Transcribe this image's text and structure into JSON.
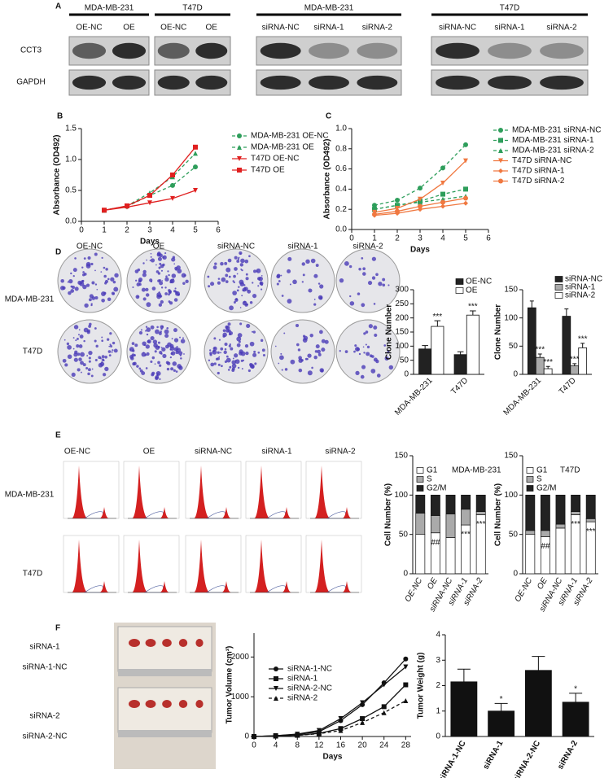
{
  "panel_letters": [
    "A",
    "B",
    "C",
    "D",
    "E",
    "F"
  ],
  "blots": {
    "groups": [
      {
        "cell_line": "MDA-MB-231",
        "lanes": [
          "OE-NC",
          "OE"
        ]
      },
      {
        "cell_line": "T47D",
        "lanes": [
          "OE-NC",
          "OE"
        ]
      },
      {
        "cell_line": "MDA-MB-231",
        "lanes": [
          "siRNA-NC",
          "siRNA-1",
          "siRNA-2"
        ]
      },
      {
        "cell_line": "T47D",
        "lanes": [
          "siRNA-NC",
          "siRNA-1",
          "siRNA-2"
        ]
      }
    ],
    "rows": [
      "CCT3",
      "GAPDH"
    ]
  },
  "colony_plates": {
    "columns": [
      "OE-NC",
      "OE",
      "siRNA-NC",
      "siRNA-1",
      "siRNA-2"
    ],
    "rows": [
      "MDA-MB-231",
      "T47D"
    ]
  },
  "flow_histograms": {
    "columns": [
      "OE-NC",
      "OE",
      "siRNA-NC",
      "siRNA-1",
      "siRNA-2"
    ],
    "rows": [
      "MDA-MB-231",
      "T47D"
    ]
  },
  "tumor_photo": {
    "labels": [
      "siRNA-1",
      "siRNA-1-NC",
      "siRNA-2",
      "siRNA-2-NC"
    ]
  },
  "chart_data": [
    {
      "type": "line",
      "xlabel": "Days",
      "ylabel": "Absorbance (OD492)",
      "x": [
        1,
        2,
        3,
        4,
        5
      ],
      "xlim": [
        0,
        6
      ],
      "xticks": [
        0,
        1,
        2,
        3,
        4,
        5,
        6
      ],
      "ylim": [
        0,
        1.5
      ],
      "yticks": [
        {
          "value": 0,
          "label": "0.0"
        },
        {
          "value": 0.5,
          "label": "0.5"
        },
        {
          "value": 1,
          "label": "1.0"
        },
        {
          "value": 1.5,
          "label": "1.5"
        }
      ],
      "series": [
        {
          "name": "MDA-MB-231 OE-NC",
          "color": "#2e9e5b",
          "marker": "circle",
          "dashed": true,
          "values": [
            0.18,
            0.24,
            0.42,
            0.58,
            0.88
          ]
        },
        {
          "name": "MDA-MB-231 OE",
          "color": "#2e9e5b",
          "marker": "triangle",
          "dashed": true,
          "values": [
            0.18,
            0.25,
            0.46,
            0.72,
            1.1
          ]
        },
        {
          "name": "T47D OE-NC",
          "color": "#e02020",
          "marker": "triangle-down",
          "dashed": false,
          "values": [
            0.18,
            0.23,
            0.3,
            0.37,
            0.5
          ]
        },
        {
          "name": "T47D OE",
          "color": "#e02020",
          "marker": "square",
          "dashed": false,
          "values": [
            0.18,
            0.25,
            0.42,
            0.75,
            1.2
          ]
        }
      ]
    },
    {
      "type": "line",
      "xlabel": "Days",
      "ylabel": "Absorbance (OD492)",
      "x": [
        1,
        2,
        3,
        4,
        5
      ],
      "xlim": [
        0,
        6
      ],
      "xticks": [
        0,
        1,
        2,
        3,
        4,
        5,
        6
      ],
      "ylim": [
        0,
        1
      ],
      "yticks": [
        {
          "value": 0,
          "label": "0.0"
        },
        0.2,
        0.4,
        0.6,
        0.8,
        {
          "value": 1,
          "label": "1.0"
        }
      ],
      "series": [
        {
          "name": "MDA-MB-231 siRNA-NC",
          "color": "#2e9e5b",
          "marker": "circle",
          "dashed": true,
          "values": [
            0.24,
            0.29,
            0.41,
            0.61,
            0.84
          ]
        },
        {
          "name": "MDA-MB-231 siRNA-1",
          "color": "#2e9e5b",
          "marker": "square",
          "dashed": true,
          "values": [
            0.2,
            0.24,
            0.28,
            0.35,
            0.4
          ]
        },
        {
          "name": "MDA-MB-231 siRNA-2",
          "color": "#2e9e5b",
          "marker": "triangle",
          "dashed": true,
          "values": [
            0.2,
            0.24,
            0.27,
            0.3,
            0.33
          ]
        },
        {
          "name": "T47D siRNA-NC",
          "color": "#f07840",
          "marker": "triangle-down",
          "dashed": false,
          "values": [
            0.17,
            0.21,
            0.3,
            0.46,
            0.68
          ]
        },
        {
          "name": "T47D siRNA-1",
          "color": "#f07840",
          "marker": "diamond",
          "dashed": false,
          "values": [
            0.14,
            0.16,
            0.2,
            0.23,
            0.26
          ]
        },
        {
          "name": "T47D siRNA-2",
          "color": "#f07840",
          "marker": "circle",
          "dashed": false,
          "values": [
            0.15,
            0.18,
            0.23,
            0.27,
            0.31
          ]
        }
      ]
    },
    {
      "type": "bar",
      "ylabel": "Clone Number",
      "categories": [
        "MDA-MB-231",
        "T47D"
      ],
      "ylim": [
        0,
        300
      ],
      "yticks": [
        0,
        50,
        100,
        150,
        200,
        250,
        300
      ],
      "series": [
        {
          "name": "OE-NC",
          "color": "#222222",
          "values": [
            90,
            70
          ],
          "errors": [
            12,
            10
          ],
          "annotations": [
            null,
            null
          ]
        },
        {
          "name": "OE",
          "color": "#ffffff",
          "values": [
            170,
            210
          ],
          "errors": [
            20,
            15
          ],
          "annotations": [
            "***",
            "***"
          ]
        }
      ]
    },
    {
      "type": "bar",
      "ylabel": "Clone Number",
      "categories": [
        "MDA-MB-231",
        "T47D"
      ],
      "ylim": [
        0,
        150
      ],
      "yticks": [
        0,
        50,
        100,
        150
      ],
      "series": [
        {
          "name": "siRNA-NC",
          "color": "#222222",
          "values": [
            118,
            103
          ],
          "errors": [
            12,
            13
          ],
          "annotations": [
            null,
            null
          ]
        },
        {
          "name": "siRNA-1",
          "color": "#aaaaaa",
          "values": [
            30,
            15
          ],
          "errors": [
            6,
            4
          ],
          "annotations": [
            "***",
            "***"
          ]
        },
        {
          "name": "siRNA-2",
          "color": "#ffffff",
          "values": [
            10,
            47
          ],
          "errors": [
            4,
            8
          ],
          "annotations": [
            "***",
            "***"
          ]
        }
      ]
    },
    {
      "type": "stacked_bar",
      "title": "MDA-MB-231",
      "ylabel": "Cell Number (%)",
      "categories": [
        "OE-NC",
        "OE",
        "siRNA-NC",
        "siRNA-1",
        "siRNA-2"
      ],
      "ylim": [
        0,
        150
      ],
      "yticks": [
        0,
        50,
        100,
        150
      ],
      "annotations": [
        null,
        "##",
        null,
        "***",
        "***"
      ],
      "series": [
        {
          "name": "G1",
          "color": "#ffffff",
          "values": [
            50,
            52,
            46,
            62,
            75
          ]
        },
        {
          "name": "S",
          "color": "#aaaaaa",
          "values": [
            27,
            22,
            30,
            20,
            4
          ]
        },
        {
          "name": "G2/M",
          "color": "#222222",
          "values": [
            23,
            26,
            24,
            18,
            21
          ]
        }
      ]
    },
    {
      "type": "stacked_bar",
      "title": "T47D",
      "ylabel": "Cell Number (%)",
      "categories": [
        "OE-NC",
        "OE",
        "siRNA-NC",
        "siRNA-1",
        "siRNA-2"
      ],
      "ylim": [
        0,
        150
      ],
      "yticks": [
        0,
        50,
        100,
        150
      ],
      "annotations": [
        null,
        "##",
        null,
        "***",
        "***"
      ],
      "series": [
        {
          "name": "G1",
          "color": "#ffffff",
          "values": [
            50,
            47,
            58,
            75,
            66
          ]
        },
        {
          "name": "S",
          "color": "#aaaaaa",
          "values": [
            5,
            8,
            5,
            4,
            4
          ]
        },
        {
          "name": "G2/M",
          "color": "#222222",
          "values": [
            45,
            45,
            37,
            21,
            30
          ]
        }
      ]
    },
    {
      "type": "line",
      "xlabel": "Days",
      "ylabel": "Tumor Volume (cm³)",
      "x": [
        0,
        4,
        8,
        12,
        16,
        20,
        24,
        28
      ],
      "xlim": [
        0,
        29
      ],
      "xticks": [
        0,
        4,
        8,
        12,
        16,
        20,
        24,
        28
      ],
      "ylim": [
        0,
        2600
      ],
      "yticks": [
        0,
        1000,
        2000
      ],
      "series": [
        {
          "name": "siRNA-1-NC",
          "color": "#111111",
          "marker": "circle",
          "dashed": false,
          "values": [
            0,
            20,
            50,
            120,
            400,
            800,
            1350,
            1950
          ]
        },
        {
          "name": "siRNA-1",
          "color": "#111111",
          "marker": "square",
          "dashed": false,
          "values": [
            0,
            10,
            30,
            80,
            200,
            450,
            750,
            1300
          ]
        },
        {
          "name": "siRNA-2-NC",
          "color": "#111111",
          "marker": "triangle-down",
          "dashed": false,
          "values": [
            0,
            20,
            60,
            150,
            450,
            850,
            1300,
            1750
          ]
        },
        {
          "name": "siRNA-2",
          "color": "#111111",
          "marker": "triangle",
          "dashed": true,
          "values": [
            0,
            10,
            30,
            70,
            150,
            350,
            600,
            900
          ]
        }
      ]
    },
    {
      "type": "bar",
      "ylabel": "Tumor Weight (g)",
      "categories": [
        "siRNA-1-NC",
        "siRNA-1",
        "siRNA-2-NC",
        "siRNA-2"
      ],
      "ylim": [
        0,
        4
      ],
      "yticks": [
        0,
        1,
        2,
        3,
        4
      ],
      "series": [
        {
          "color": "#111111",
          "values": [
            2.15,
            1.0,
            2.6,
            1.35
          ],
          "errors": [
            0.5,
            0.3,
            0.55,
            0.35
          ],
          "annotations": [
            null,
            "*",
            null,
            "*"
          ]
        }
      ]
    }
  ]
}
